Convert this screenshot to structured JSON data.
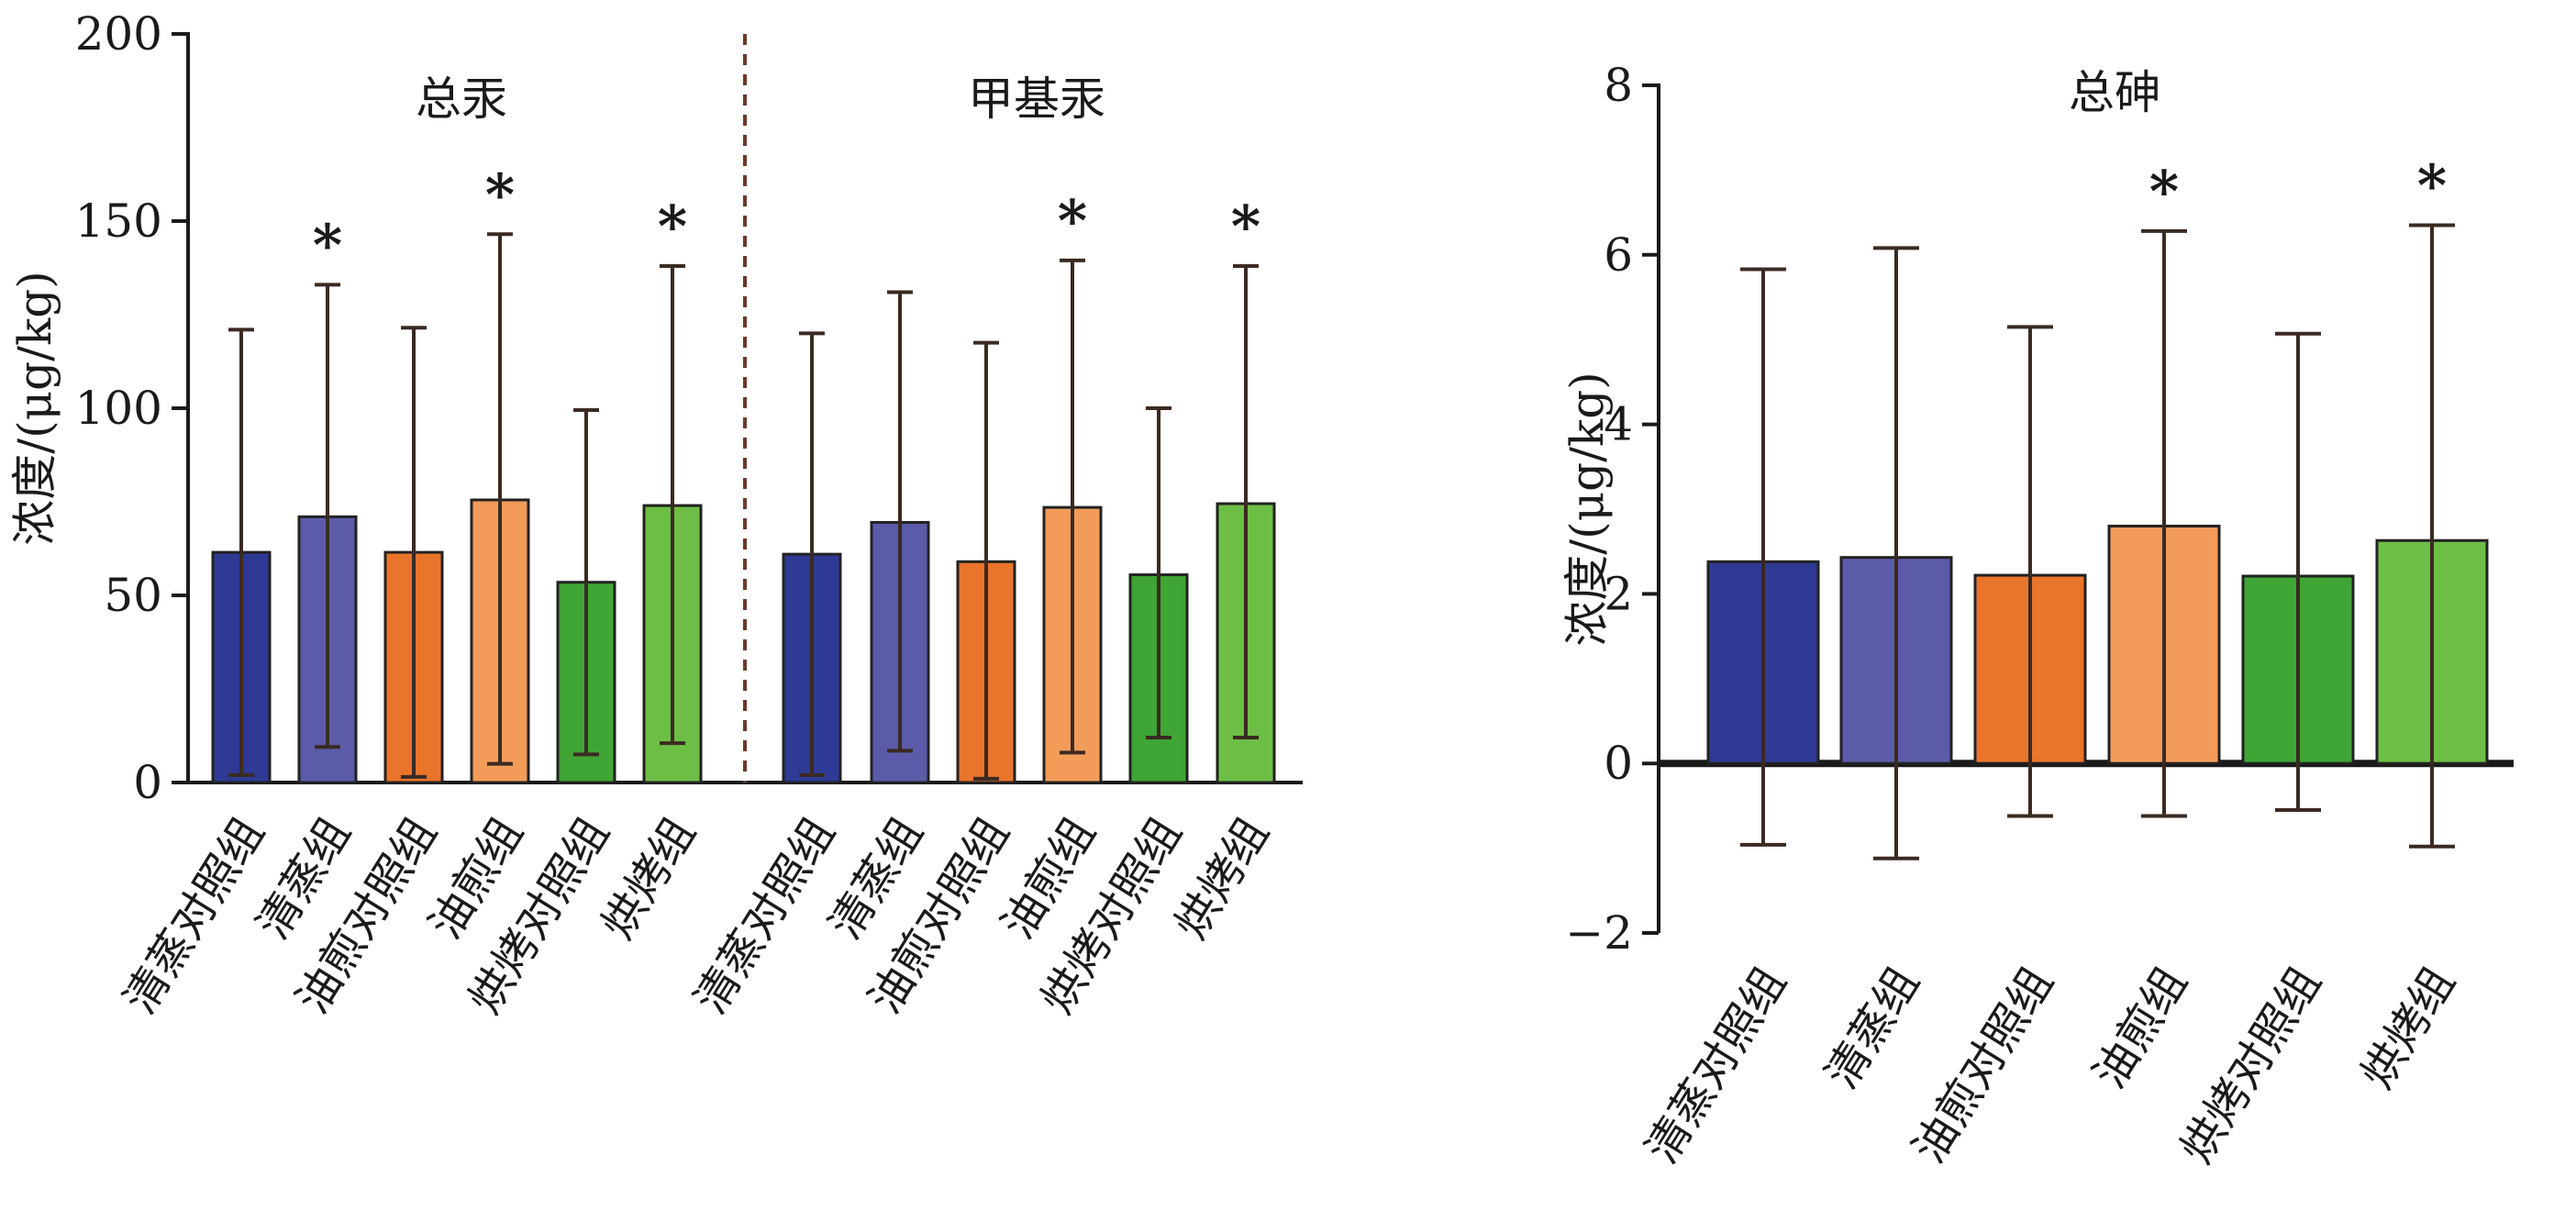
{
  "chart_data": [
    {
      "type": "bar",
      "panel": "left",
      "ylabel": "浓度/(μg/kg)",
      "ylim": [
        0,
        200
      ],
      "yticks": [
        0,
        50,
        100,
        150,
        200
      ],
      "groups": [
        {
          "title": "总汞",
          "categories": [
            "清蒸对照组",
            "清蒸组",
            "油煎对照组",
            "油煎组",
            "烘烤对照组",
            "烘烤组"
          ],
          "values": [
            61.5,
            71,
            61.5,
            75.5,
            53.5,
            74
          ],
          "error_upper": [
            121,
            133,
            121.5,
            146.5,
            99.5,
            138
          ],
          "error_lower": [
            2,
            9.5,
            1.5,
            5,
            7.5,
            10.5
          ],
          "significant": [
            false,
            true,
            false,
            true,
            false,
            true
          ]
        },
        {
          "title": "甲基汞",
          "categories": [
            "清蒸对照组",
            "清蒸组",
            "油煎对照组",
            "油煎组",
            "烘烤对照组",
            "烘烤组"
          ],
          "values": [
            61,
            69.5,
            59,
            73.5,
            55.5,
            74.5
          ],
          "error_upper": [
            120,
            131,
            117.5,
            139.5,
            100,
            138
          ],
          "error_lower": [
            2,
            8.5,
            1,
            8,
            12,
            12
          ],
          "significant": [
            false,
            false,
            false,
            true,
            false,
            true
          ]
        }
      ],
      "significance_marker": "*",
      "colors": [
        "#2E3A94",
        "#5B5BAA",
        "#E9742B",
        "#F39C5A",
        "#3FA535",
        "#6DBE45"
      ]
    },
    {
      "type": "bar",
      "panel": "right",
      "title": "总砷",
      "ylabel": "浓度/(μg/kg)",
      "ylim": [
        -2,
        8
      ],
      "yticks": [
        -2,
        0,
        2,
        4,
        6,
        8
      ],
      "tick_labels": [
        "−2",
        "0",
        "2",
        "4",
        "6",
        "8"
      ],
      "categories": [
        "清蒸对照组",
        "清蒸组",
        "油煎对照组",
        "油煎组",
        "烘烤对照组",
        "烘烤组"
      ],
      "values": [
        2.38,
        2.43,
        2.22,
        2.8,
        2.21,
        2.63
      ],
      "error_upper": [
        5.83,
        6.08,
        5.15,
        6.28,
        5.07,
        6.35
      ],
      "error_lower": [
        -0.96,
        -1.12,
        -0.62,
        -0.62,
        -0.55,
        -0.98
      ],
      "significant": [
        false,
        false,
        false,
        true,
        false,
        true
      ],
      "significance_marker": "*",
      "colors": [
        "#2E3A94",
        "#5B5BAA",
        "#E9742B",
        "#F39C5A",
        "#3FA535",
        "#6DBE45"
      ]
    }
  ]
}
